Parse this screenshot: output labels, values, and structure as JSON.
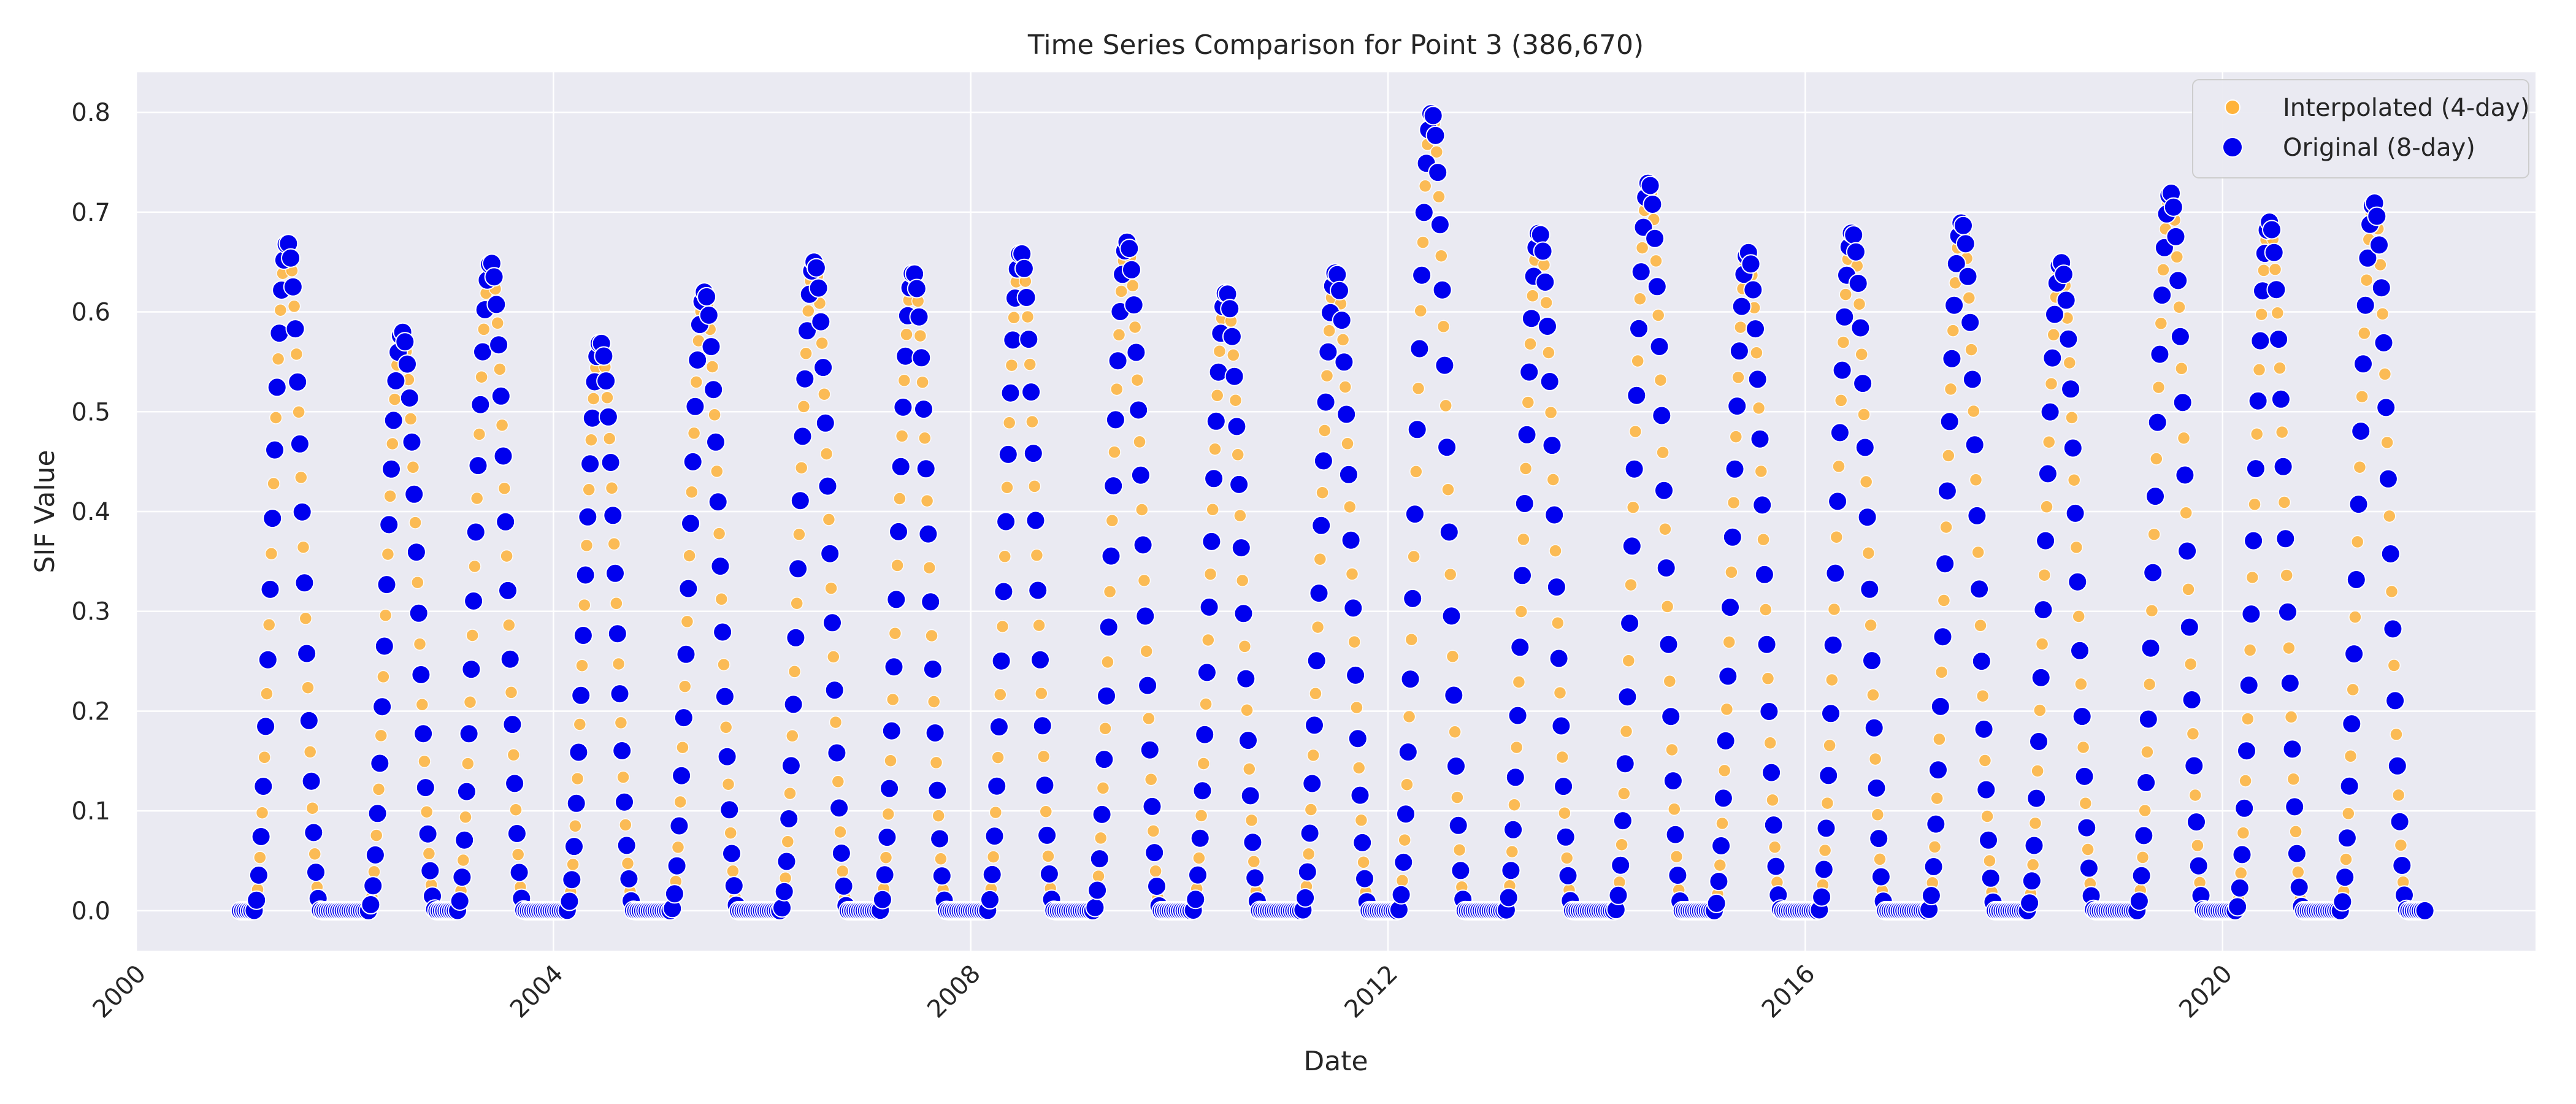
{
  "chart_data": {
    "type": "scatter",
    "title": "Time Series Comparison for Point 3 (386,670)",
    "xlabel": "Date",
    "ylabel": "SIF Value",
    "xlim": [
      2000.0,
      2023.0
    ],
    "ylim": [
      -0.04,
      0.84
    ],
    "x_ticks": [
      {
        "value": 2000,
        "label": "2000"
      },
      {
        "value": 2004,
        "label": "2004"
      },
      {
        "value": 2008,
        "label": "2008"
      },
      {
        "value": 2012,
        "label": "2012"
      },
      {
        "value": 2016,
        "label": "2016"
      },
      {
        "value": 2020,
        "label": "2020"
      }
    ],
    "y_ticks": [
      {
        "value": 0.0,
        "label": "0.0"
      },
      {
        "value": 0.1,
        "label": "0.1"
      },
      {
        "value": 0.2,
        "label": "0.2"
      },
      {
        "value": 0.3,
        "label": "0.3"
      },
      {
        "value": 0.4,
        "label": "0.4"
      },
      {
        "value": 0.5,
        "label": "0.5"
      },
      {
        "value": 0.6,
        "label": "0.6"
      },
      {
        "value": 0.7,
        "label": "0.7"
      },
      {
        "value": 0.8,
        "label": "0.8"
      }
    ],
    "grid": true,
    "legend": "top-right",
    "x_range": [
      2001.0,
      2021.95
    ],
    "annual_peaks": [
      {
        "year": 2001,
        "peak": 0.67,
        "peak_date": 2001.45
      },
      {
        "year": 2002,
        "peak": 0.58,
        "peak_date": 2002.55
      },
      {
        "year": 2003,
        "peak": 0.65,
        "peak_date": 2003.4
      },
      {
        "year": 2004,
        "peak": 0.57,
        "peak_date": 2004.45
      },
      {
        "year": 2005,
        "peak": 0.62,
        "peak_date": 2005.45
      },
      {
        "year": 2006,
        "peak": 0.65,
        "peak_date": 2006.5
      },
      {
        "year": 2007,
        "peak": 0.64,
        "peak_date": 2007.45
      },
      {
        "year": 2008,
        "peak": 0.66,
        "peak_date": 2008.48
      },
      {
        "year": 2009,
        "peak": 0.67,
        "peak_date": 2009.5
      },
      {
        "year": 2010,
        "peak": 0.62,
        "peak_date": 2010.45
      },
      {
        "year": 2011,
        "peak": 0.64,
        "peak_date": 2011.5
      },
      {
        "year": 2012,
        "peak": 0.8,
        "peak_date": 2012.42
      },
      {
        "year": 2013,
        "peak": 0.68,
        "peak_date": 2013.45
      },
      {
        "year": 2014,
        "peak": 0.73,
        "peak_date": 2014.5
      },
      {
        "year": 2015,
        "peak": 0.66,
        "peak_date": 2015.45
      },
      {
        "year": 2016,
        "peak": 0.68,
        "peak_date": 2016.45
      },
      {
        "year": 2017,
        "peak": 0.69,
        "peak_date": 2017.5
      },
      {
        "year": 2018,
        "peak": 0.65,
        "peak_date": 2018.45
      },
      {
        "year": 2019,
        "peak": 0.72,
        "peak_date": 2019.5
      },
      {
        "year": 2020,
        "peak": 0.69,
        "peak_date": 2020.45
      },
      {
        "year": 2021,
        "peak": 0.71,
        "peak_date": 2021.45
      }
    ],
    "series": [
      {
        "name": "Interpolated (4-day)",
        "color": "#ffb33a",
        "marker": "circle-small",
        "interval_days": 4
      },
      {
        "name": "Original (8-day)",
        "color": "#0000ee",
        "marker": "circle",
        "interval_days": 8
      }
    ]
  }
}
